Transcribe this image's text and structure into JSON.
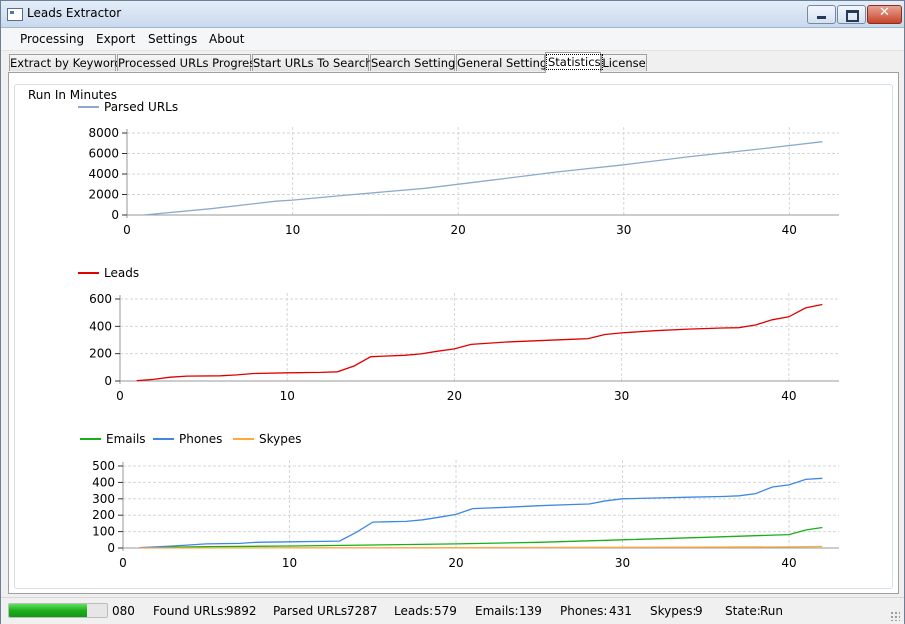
{
  "window": {
    "title": "Leads Extractor",
    "close_glyph": "✕"
  },
  "menu": [
    "Processing",
    "Export",
    "Settings",
    "About"
  ],
  "tabs": [
    {
      "label": "Extract by Keywords"
    },
    {
      "label": "Processed URLs Progress"
    },
    {
      "label": "Start URLs To Search"
    },
    {
      "label": "Search Settings"
    },
    {
      "label": "General Settings"
    },
    {
      "label": "Statistics",
      "active": true
    },
    {
      "label": "License"
    }
  ],
  "group_title": "Run In Minutes",
  "icons": {
    "app": "app-window-icon",
    "minimize": "minimize-icon",
    "maximize": "maximize-icon",
    "close": "close-icon",
    "grip": "resize-grip-icon"
  },
  "chart_data": [
    {
      "type": "line",
      "xticks": [
        0,
        10,
        20,
        30,
        40
      ],
      "xlim": [
        0,
        43
      ],
      "yticks": [
        0,
        2000,
        4000,
        6000,
        8000
      ],
      "ylim": [
        0,
        8000
      ],
      "grid": true,
      "legend": "top-left",
      "series": [
        {
          "name": "Parsed URLs",
          "color": "#8eaacb",
          "x": [
            1,
            5,
            9,
            10,
            13,
            18,
            22,
            26,
            30,
            34,
            38,
            42
          ],
          "y": [
            0,
            600,
            1350,
            1450,
            1900,
            2600,
            3400,
            4200,
            4900,
            5700,
            6400,
            7150
          ]
        }
      ]
    },
    {
      "type": "line",
      "xticks": [
        0,
        10,
        20,
        30,
        40
      ],
      "xlim": [
        0,
        43
      ],
      "yticks": [
        0,
        200,
        400,
        600
      ],
      "ylim": [
        0,
        600
      ],
      "grid": true,
      "legend": "top-left",
      "series": [
        {
          "name": "Leads",
          "color": "#e00000",
          "x": [
            1,
            2,
            3,
            4,
            6,
            7,
            8,
            10,
            12,
            13,
            14,
            15,
            17,
            18,
            19,
            20,
            21,
            23,
            25,
            27,
            28,
            29,
            30,
            32,
            34,
            36,
            37,
            38,
            39,
            40,
            41,
            42
          ],
          "y": [
            2,
            12,
            28,
            36,
            38,
            45,
            55,
            60,
            63,
            67,
            110,
            178,
            188,
            198,
            218,
            235,
            268,
            285,
            295,
            305,
            310,
            340,
            352,
            368,
            380,
            388,
            390,
            410,
            448,
            470,
            535,
            560
          ]
        }
      ]
    },
    {
      "type": "line",
      "xticks": [
        0,
        10,
        20,
        30,
        40
      ],
      "xlim": [
        0,
        43
      ],
      "yticks": [
        0,
        100,
        200,
        300,
        400,
        500
      ],
      "ylim": [
        0,
        500
      ],
      "grid": true,
      "legend": "top-left",
      "series": [
        {
          "name": "Emails",
          "color": "#1aae1a",
          "x": [
            1,
            5,
            10,
            15,
            20,
            25,
            30,
            35,
            40,
            41,
            42
          ],
          "y": [
            2,
            8,
            12,
            18,
            25,
            35,
            50,
            65,
            82,
            110,
            125
          ]
        },
        {
          "name": "Phones",
          "color": "#3f87e3",
          "x": [
            1,
            3,
            5,
            7,
            8,
            10,
            12,
            13,
            14,
            15,
            17,
            18,
            19,
            20,
            21,
            23,
            25,
            27,
            28,
            29,
            30,
            32,
            34,
            36,
            37,
            38,
            39,
            40,
            41,
            42
          ],
          "y": [
            2,
            12,
            25,
            28,
            35,
            38,
            40,
            42,
            95,
            158,
            162,
            172,
            188,
            205,
            240,
            248,
            258,
            265,
            268,
            288,
            300,
            305,
            310,
            314,
            318,
            332,
            372,
            385,
            418,
            425
          ]
        },
        {
          "name": "Skypes",
          "color": "#ffa940",
          "x": [
            1,
            10,
            20,
            30,
            40,
            42
          ],
          "y": [
            0,
            1,
            2,
            4,
            7,
            9
          ]
        }
      ]
    }
  ],
  "status": {
    "progress_fraction": 0.8,
    "progress_text": "080",
    "found_urls_label": "Found URLs:",
    "found_urls": "9892",
    "parsed_urls_label": "Parsed URLs:",
    "parsed_urls": "7287",
    "leads_label": "Leads:",
    "leads": "579",
    "emails_label": "Emails:",
    "emails": "139",
    "phones_label": "Phones:",
    "phones": "431",
    "skypes_label": "Skypes:",
    "skypes": "9",
    "state_label": "State:",
    "state": "Run"
  }
}
